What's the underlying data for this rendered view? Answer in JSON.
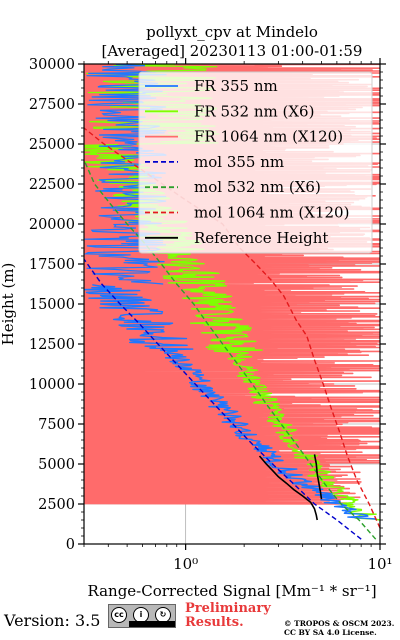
{
  "chart_data": {
    "type": "line",
    "title": "pollyxt_cpv at Mindelo",
    "subtitle": "[Averaged] 20230113 01:00-01:59",
    "xlabel": "Range-Corrected Signal [Mm⁻¹ * sr⁻¹]",
    "ylabel": "Height (m)",
    "xscale": "log",
    "xlim": [
      0.3,
      10
    ],
    "ylim": [
      0,
      30000
    ],
    "x_major_ticks": [
      {
        "value": 1,
        "label": "10⁰"
      },
      {
        "value": 10,
        "label": "10¹"
      }
    ],
    "y_ticks": [
      0,
      2500,
      5000,
      7500,
      10000,
      12500,
      15000,
      17500,
      20000,
      22500,
      25000,
      27500,
      30000
    ],
    "y_tick_labels": [
      "0",
      "2500",
      "5000",
      "7500",
      "10000",
      "12500",
      "15000",
      "17500",
      "20000",
      "22500",
      "25000",
      "27500",
      "30000"
    ],
    "grid": true,
    "legend_position": "top-right",
    "legend_entries": [
      "FR 355 nm",
      "FR 532 nm (X6)",
      "FR 1064 nm (X120)",
      "mol 355 nm",
      "mol 532 nm (X6)",
      "mol 1064 nm (X120)",
      "Reference Height"
    ],
    "series": [
      {
        "name": "FR 355 nm",
        "color": "#1f77ff",
        "style": "solid-noisy",
        "x": [
          8.5,
          6.0,
          4.2,
          3.0,
          2.3,
          1.85,
          1.5,
          1.2,
          0.98,
          0.8,
          0.65,
          0.52,
          0.42
        ],
        "y": [
          1500,
          2500,
          3750,
          5000,
          6250,
          7500,
          8750,
          10000,
          11250,
          12500,
          13750,
          15000,
          16250
        ]
      },
      {
        "name": "FR 532 nm (X6)",
        "color": "#7fff00",
        "style": "solid-noisy",
        "x": [
          9.0,
          7.2,
          5.4,
          4.5,
          3.7,
          3.1,
          2.65,
          2.3,
          2.0,
          1.8,
          1.6,
          1.4,
          1.22,
          1.05,
          0.9,
          0.78,
          0.66,
          0.55,
          0.47,
          0.4
        ],
        "y": [
          1500,
          2500,
          3750,
          5000,
          6250,
          7500,
          8750,
          10000,
          11250,
          12500,
          13750,
          15000,
          16250,
          17500,
          18750,
          20000,
          21250,
          22500,
          23750,
          25000
        ]
      },
      {
        "name": "FR 1064 nm (X120)",
        "color": "#ff6b6b",
        "style": "solid-noisy",
        "x": [
          6.5,
          6.0,
          5.5,
          5.0,
          5.0,
          5.0,
          5.0,
          5.0,
          5.0,
          5.0,
          5.0,
          5.0,
          5.0
        ],
        "y": [
          2500,
          5000,
          7500,
          10000,
          12500,
          15000,
          17500,
          20000,
          22500,
          25000,
          27500,
          30000,
          30000
        ]
      },
      {
        "name": "mol 355 nm",
        "color": "#0000cc",
        "style": "dashed",
        "x": [
          8.0,
          6.0,
          4.6,
          3.6,
          2.8,
          2.2,
          1.75,
          1.4,
          1.12,
          0.9,
          0.72,
          0.58,
          0.46,
          0.37,
          0.3
        ],
        "y": [
          300,
          1500,
          2500,
          3750,
          5000,
          6250,
          7500,
          8750,
          10000,
          11250,
          12500,
          13750,
          15000,
          16250,
          17800
        ]
      },
      {
        "name": "mol 532 nm (X6)",
        "color": "#2ca02c",
        "style": "dashed",
        "x": [
          9.5,
          7.8,
          6.3,
          5.2,
          4.4,
          3.7,
          3.1,
          2.6,
          2.2,
          1.85,
          1.55,
          1.3,
          1.1,
          0.9,
          0.75,
          0.62,
          0.5,
          0.41,
          0.34,
          0.3
        ],
        "y": [
          300,
          1500,
          2500,
          3750,
          5000,
          6250,
          7500,
          8750,
          10000,
          11250,
          12500,
          13750,
          15000,
          16250,
          17500,
          18750,
          20000,
          21250,
          22500,
          24000
        ]
      },
      {
        "name": "mol 1064 nm (X120)",
        "color": "#e31a1c",
        "style": "dashed",
        "x": [
          10.0,
          8.8,
          7.6,
          6.8,
          6.2,
          5.6,
          5.1,
          4.6,
          4.2,
          3.7,
          3.2,
          2.75,
          2.3,
          1.9,
          1.55,
          1.0,
          0.7,
          0.5,
          0.38,
          0.3
        ],
        "y": [
          1000,
          2500,
          4000,
          5500,
          7000,
          8500,
          10000,
          11500,
          13000,
          14000,
          15500,
          16500,
          17500,
          18500,
          20000,
          21500,
          22800,
          24000,
          25000,
          26000
        ]
      },
      {
        "name": "Reference Height",
        "color": "#000000",
        "style": "solid",
        "x": [
          2.4,
          2.6,
          2.8,
          3.0,
          3.3,
          3.6,
          4.0,
          4.4,
          4.6,
          4.7,
          4.75
        ],
        "y": [
          5500,
          5000,
          4600,
          4200,
          3800,
          3400,
          3000,
          2600,
          2200,
          1800,
          1500
        ]
      },
      {
        "name": "Reference Height",
        "color": "#000000",
        "style": "solid",
        "x": [
          4.6,
          4.7,
          4.75,
          4.85,
          4.95,
          5.0
        ],
        "y": [
          5600,
          5000,
          4400,
          3800,
          3200,
          2800
        ]
      }
    ]
  },
  "footer": {
    "version": "Version: 3.5",
    "license_badge": "CC BY SA",
    "preliminary_line1": "Preliminary",
    "preliminary_line2": "Results.",
    "copyright_line1": "© TROPOS & OSCM 2023.",
    "copyright_line2": "CC BY SA 4.0 License."
  }
}
